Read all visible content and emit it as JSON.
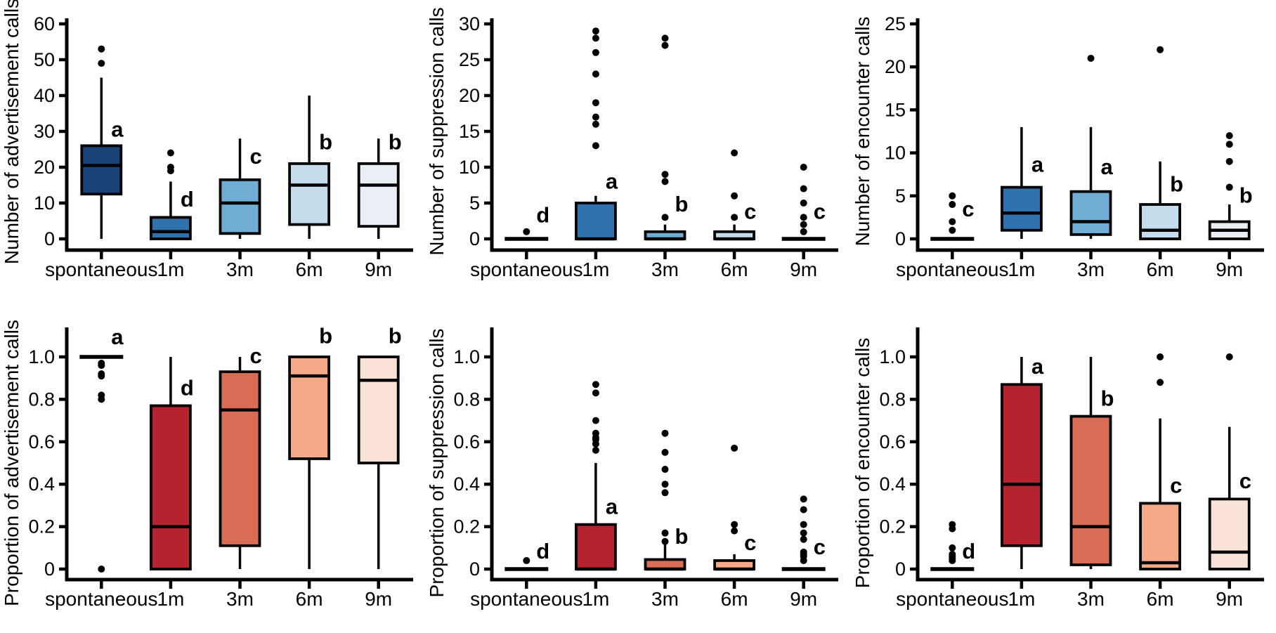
{
  "figure": {
    "background": "#ffffff",
    "text_color": "#000000",
    "layout": "2 rows x 3 columns of box plots",
    "categories": [
      "spontaneous",
      "1m",
      "3m",
      "6m",
      "9m"
    ],
    "blue_palette": [
      "#1a4379",
      "#2f72ae",
      "#6fadd4",
      "#c5dcec",
      "#e9eff4"
    ],
    "red_palette": [
      "#b4232f",
      "#d96c55",
      "#f5a986",
      "#fae3d6"
    ]
  },
  "chart_data": [
    {
      "id": "advertisement-number",
      "type": "box",
      "ylabel": "Number of advertisement calls",
      "xlabel": "",
      "ylim": [
        0,
        60
      ],
      "yticks": [
        0,
        10,
        20,
        30,
        40,
        50,
        60
      ],
      "ytick_labels": [
        "0",
        "10",
        "20",
        "30",
        "40",
        "50",
        "60"
      ],
      "grid": false,
      "axis_top_overhang": 8,
      "categories": [
        "spontaneous",
        "1m",
        "3m",
        "6m",
        "9m"
      ],
      "boxes": [
        {
          "category": "spontaneous",
          "color": "#1a4379",
          "q1": 12.5,
          "median": 20.5,
          "q3": 26,
          "whisker_low": 0,
          "whisker_high": 45,
          "outliers": [
            49,
            53
          ],
          "letter": "a",
          "letter_y": 28.5
        },
        {
          "category": "1m",
          "color": "#2f72ae",
          "q1": 0,
          "median": 2,
          "q3": 6,
          "whisker_low": 0,
          "whisker_high": 16,
          "outliers": [
            19,
            20,
            24
          ],
          "letter": "d",
          "letter_y": 9
        },
        {
          "category": "3m",
          "color": "#6fadd4",
          "q1": 1.5,
          "median": 10,
          "q3": 16.5,
          "whisker_low": 0,
          "whisker_high": 28,
          "outliers": [],
          "letter": "c",
          "letter_y": 21
        },
        {
          "category": "6m",
          "color": "#c5dcec",
          "q1": 4,
          "median": 15,
          "q3": 21,
          "whisker_low": 0,
          "whisker_high": 40,
          "outliers": [],
          "letter": "b",
          "letter_y": 25
        },
        {
          "category": "9m",
          "color": "#e9eff4",
          "q1": 3.5,
          "median": 15,
          "q3": 21,
          "whisker_low": 0,
          "whisker_high": 28,
          "outliers": [],
          "letter": "b",
          "letter_y": 25
        }
      ]
    },
    {
      "id": "suppression-number",
      "type": "box",
      "ylabel": "Number of suppression calls",
      "xlabel": "",
      "ylim": [
        0,
        30
      ],
      "yticks": [
        0,
        5,
        10,
        15,
        20,
        25,
        30
      ],
      "ytick_labels": [
        "0",
        "5",
        "10",
        "15",
        "20",
        "25",
        "30"
      ],
      "grid": false,
      "axis_top_overhang": 8,
      "categories": [
        "spontaneous",
        "1m",
        "3m",
        "6m",
        "9m"
      ],
      "boxes": [
        {
          "category": "spontaneous",
          "color": "#1a4379",
          "q1": 0,
          "median": 0,
          "q3": 0,
          "whisker_low": 0,
          "whisker_high": 0,
          "outliers": [
            1
          ],
          "letter": "d",
          "letter_y": 2.3
        },
        {
          "category": "1m",
          "color": "#2f72ae",
          "q1": 0,
          "median": 0,
          "q3": 5,
          "whisker_low": 0,
          "whisker_high": 6,
          "outliers": [
            13,
            16,
            17,
            19,
            23,
            26,
            28,
            29
          ],
          "letter": "a",
          "letter_y": 7
        },
        {
          "category": "3m",
          "color": "#6fadd4",
          "q1": 0,
          "median": 0,
          "q3": 1,
          "whisker_low": 0,
          "whisker_high": 2,
          "outliers": [
            3,
            8,
            9,
            27,
            28
          ],
          "letter": "b",
          "letter_y": 3.8
        },
        {
          "category": "6m",
          "color": "#c5dcec",
          "q1": 0,
          "median": 0,
          "q3": 1,
          "whisker_low": 0,
          "whisker_high": 2,
          "outliers": [
            3,
            6,
            12
          ],
          "letter": "c",
          "letter_y": 2.8
        },
        {
          "category": "9m",
          "color": "#e9eff4",
          "q1": 0,
          "median": 0,
          "q3": 0,
          "whisker_low": 0,
          "whisker_high": 0,
          "outliers": [
            1,
            2,
            3,
            5,
            7,
            10
          ],
          "letter": "c",
          "letter_y": 2.8
        }
      ]
    },
    {
      "id": "encounter-number",
      "type": "box",
      "ylabel": "Number of encounter calls",
      "xlabel": "",
      "ylim": [
        0,
        25
      ],
      "yticks": [
        0,
        5,
        10,
        15,
        20,
        25
      ],
      "ytick_labels": [
        "0",
        "5",
        "10",
        "15",
        "20",
        "25"
      ],
      "grid": false,
      "axis_top_overhang": 8,
      "categories": [
        "spontaneous",
        "1m",
        "3m",
        "6m",
        "9m"
      ],
      "boxes": [
        {
          "category": "spontaneous",
          "color": "#1a4379",
          "q1": 0,
          "median": 0,
          "q3": 0,
          "whisker_low": 0,
          "whisker_high": 0,
          "outliers": [
            1,
            2,
            4,
            5
          ],
          "letter": "c",
          "letter_y": 2.6
        },
        {
          "category": "1m",
          "color": "#2f72ae",
          "q1": 1,
          "median": 3,
          "q3": 6,
          "whisker_low": 0,
          "whisker_high": 13,
          "outliers": [],
          "letter": "a",
          "letter_y": 7.8
        },
        {
          "category": "3m",
          "color": "#6fadd4",
          "q1": 0.5,
          "median": 2,
          "q3": 5.5,
          "whisker_low": 0,
          "whisker_high": 13,
          "outliers": [
            21
          ],
          "letter": "a",
          "letter_y": 7.5
        },
        {
          "category": "6m",
          "color": "#c5dcec",
          "q1": 0,
          "median": 1,
          "q3": 4,
          "whisker_low": 0,
          "whisker_high": 9,
          "outliers": [
            22
          ],
          "letter": "b",
          "letter_y": 5.5
        },
        {
          "category": "9m",
          "color": "#e9eff4",
          "q1": 0,
          "median": 1,
          "q3": 2,
          "whisker_low": 0,
          "whisker_high": 4,
          "outliers": [
            6,
            9,
            11,
            12
          ],
          "letter": "b",
          "letter_y": 4.2
        }
      ]
    },
    {
      "id": "advertisement-proportion",
      "type": "box",
      "ylabel": "Proportion of advertisement calls",
      "xlabel": "",
      "ylim": [
        0,
        1.0
      ],
      "yticks": [
        0,
        0.2,
        0.4,
        0.6,
        0.8,
        1.0
      ],
      "ytick_labels": [
        "0",
        "0.2",
        "0.4",
        "0.6",
        "0.8",
        "1.0"
      ],
      "grid": false,
      "axis_top_overhang": 42,
      "categories": [
        "spontaneous",
        "1m",
        "3m",
        "6m",
        "9m"
      ],
      "boxes": [
        {
          "category": "spontaneous",
          "color": "#b4232f",
          "q1": 1.0,
          "median": 1.0,
          "q3": 1.0,
          "whisker_low": 1.0,
          "whisker_high": 1.0,
          "outliers": [
            0.97,
            0.96,
            0.92,
            0.91,
            0.82,
            0.8,
            0
          ],
          "letter": "a",
          "letter_y": 1.06
        },
        {
          "category": "1m",
          "color": "#b4232f",
          "q1": 0,
          "median": 0.2,
          "q3": 0.77,
          "whisker_low": 0,
          "whisker_high": 1.0,
          "outliers": [],
          "letter": "d",
          "letter_y": 0.82
        },
        {
          "category": "3m",
          "color": "#d96c55",
          "q1": 0.11,
          "median": 0.75,
          "q3": 0.93,
          "whisker_low": 0,
          "whisker_high": 1.0,
          "outliers": [],
          "letter": "c",
          "letter_y": 0.97
        },
        {
          "category": "6m",
          "color": "#f5a986",
          "q1": 0.52,
          "median": 0.91,
          "q3": 1.0,
          "whisker_low": 0,
          "whisker_high": 1.0,
          "outliers": [],
          "letter": "b",
          "letter_y": 1.065
        },
        {
          "category": "9m",
          "color": "#fae3d6",
          "q1": 0.5,
          "median": 0.89,
          "q3": 1.0,
          "whisker_low": 0,
          "whisker_high": 1.0,
          "outliers": [],
          "letter": "b",
          "letter_y": 1.065
        }
      ]
    },
    {
      "id": "suppression-proportion",
      "type": "box",
      "ylabel": "Proportion of suppression calls",
      "xlabel": "",
      "ylim": [
        0,
        1.0
      ],
      "yticks": [
        0,
        0.2,
        0.4,
        0.6,
        0.8,
        1.0
      ],
      "ytick_labels": [
        "0",
        "0.2",
        "0.4",
        "0.6",
        "0.8",
        "1.0"
      ],
      "grid": false,
      "axis_top_overhang": 42,
      "categories": [
        "spontaneous",
        "1m",
        "3m",
        "6m",
        "9m"
      ],
      "boxes": [
        {
          "category": "spontaneous",
          "color": "#b4232f",
          "q1": 0,
          "median": 0,
          "q3": 0,
          "whisker_low": 0,
          "whisker_high": 0,
          "outliers": [
            0.04
          ],
          "letter": "d",
          "letter_y": 0.05
        },
        {
          "category": "1m",
          "color": "#b4232f",
          "q1": 0,
          "median": 0,
          "q3": 0.21,
          "whisker_low": 0,
          "whisker_high": 0.5,
          "outliers": [
            0.56,
            0.59,
            0.61,
            0.62,
            0.64,
            0.7,
            0.83,
            0.87
          ],
          "letter": "a",
          "letter_y": 0.26
        },
        {
          "category": "3m",
          "color": "#d96c55",
          "q1": 0,
          "median": 0,
          "q3": 0.045,
          "whisker_low": 0,
          "whisker_high": 0.12,
          "outliers": [
            0.13,
            0.17,
            0.36,
            0.4,
            0.47,
            0.55,
            0.64
          ],
          "letter": "b",
          "letter_y": 0.12
        },
        {
          "category": "6m",
          "color": "#f5a986",
          "q1": 0,
          "median": 0,
          "q3": 0.04,
          "whisker_low": 0,
          "whisker_high": 0.07,
          "outliers": [
            0.18,
            0.21,
            0.57
          ],
          "letter": "c",
          "letter_y": 0.09
        },
        {
          "category": "9m",
          "color": "#fae3d6",
          "q1": 0,
          "median": 0,
          "q3": 0,
          "whisker_low": 0,
          "whisker_high": 0,
          "outliers": [
            0.04,
            0.06,
            0.07,
            0.08,
            0.14,
            0.17,
            0.21,
            0.28,
            0.33
          ],
          "letter": "c",
          "letter_y": 0.07
        }
      ]
    },
    {
      "id": "encounter-proportion",
      "type": "box",
      "ylabel": "Proportion of encounter calls",
      "xlabel": "",
      "ylim": [
        0,
        1.0
      ],
      "yticks": [
        0,
        0.2,
        0.4,
        0.6,
        0.8,
        1.0
      ],
      "ytick_labels": [
        "0",
        "0.2",
        "0.4",
        "0.6",
        "0.8",
        "1.0"
      ],
      "grid": false,
      "axis_top_overhang": 42,
      "categories": [
        "spontaneous",
        "1m",
        "3m",
        "6m",
        "9m"
      ],
      "boxes": [
        {
          "category": "spontaneous",
          "color": "#b4232f",
          "q1": 0,
          "median": 0,
          "q3": 0,
          "whisker_low": 0,
          "whisker_high": 0,
          "outliers": [
            0.04,
            0.05,
            0.06,
            0.07,
            0.1,
            0.19,
            0.21
          ],
          "letter": "d",
          "letter_y": 0.05
        },
        {
          "category": "1m",
          "color": "#b4232f",
          "q1": 0.11,
          "median": 0.4,
          "q3": 0.87,
          "whisker_low": 0,
          "whisker_high": 1.0,
          "outliers": [],
          "letter": "a",
          "letter_y": 0.92
        },
        {
          "category": "3m",
          "color": "#d96c55",
          "q1": 0.02,
          "median": 0.2,
          "q3": 0.72,
          "whisker_low": 0,
          "whisker_high": 1.0,
          "outliers": [],
          "letter": "b",
          "letter_y": 0.77
        },
        {
          "category": "6m",
          "color": "#f5a986",
          "q1": 0,
          "median": 0.03,
          "q3": 0.31,
          "whisker_low": 0,
          "whisker_high": 0.71,
          "outliers": [
            0.88,
            1.0
          ],
          "letter": "c",
          "letter_y": 0.36
        },
        {
          "category": "9m",
          "color": "#fae3d6",
          "q1": 0,
          "median": 0.08,
          "q3": 0.33,
          "whisker_low": 0,
          "whisker_high": 0.67,
          "outliers": [
            1.0
          ],
          "letter": "c",
          "letter_y": 0.38
        }
      ]
    }
  ]
}
